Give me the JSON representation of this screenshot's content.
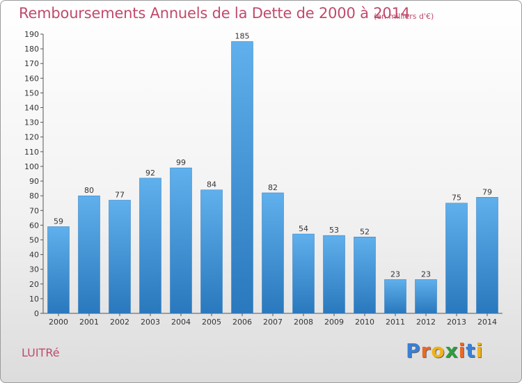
{
  "title": "Remboursements Annuels de la Dette de 2000 à 2014",
  "subtitle": "(en milliers d'€)",
  "place": "LUITRé",
  "logo": {
    "text": "Proxiti",
    "letters": [
      "P",
      "r",
      "o",
      "x",
      "i",
      "t",
      "i"
    ],
    "colors": [
      "#3a7fd5",
      "#e8692a",
      "#f0b21a",
      "#2e9e3c",
      "#e8692a",
      "#3a7fd5",
      "#f0b21a"
    ]
  },
  "colors": {
    "bar_top": "#5fb0ec",
    "bar_bottom": "#2a78bd",
    "text": "#c04a6a"
  },
  "chart_data": {
    "type": "bar",
    "title": "Remboursements Annuels de la Dette de 2000 à 2014",
    "subtitle": "(en milliers d'€)",
    "xlabel": "",
    "ylabel": "",
    "categories": [
      "2000",
      "2001",
      "2002",
      "2003",
      "2004",
      "2005",
      "2006",
      "2007",
      "2008",
      "2009",
      "2010",
      "2011",
      "2012",
      "2013",
      "2014"
    ],
    "values": [
      59,
      80,
      77,
      92,
      99,
      84,
      185,
      82,
      54,
      53,
      52,
      23,
      23,
      75,
      79
    ],
    "ylim": [
      0,
      190
    ],
    "ytick_step": 10,
    "grid": false,
    "data_labels": true
  }
}
